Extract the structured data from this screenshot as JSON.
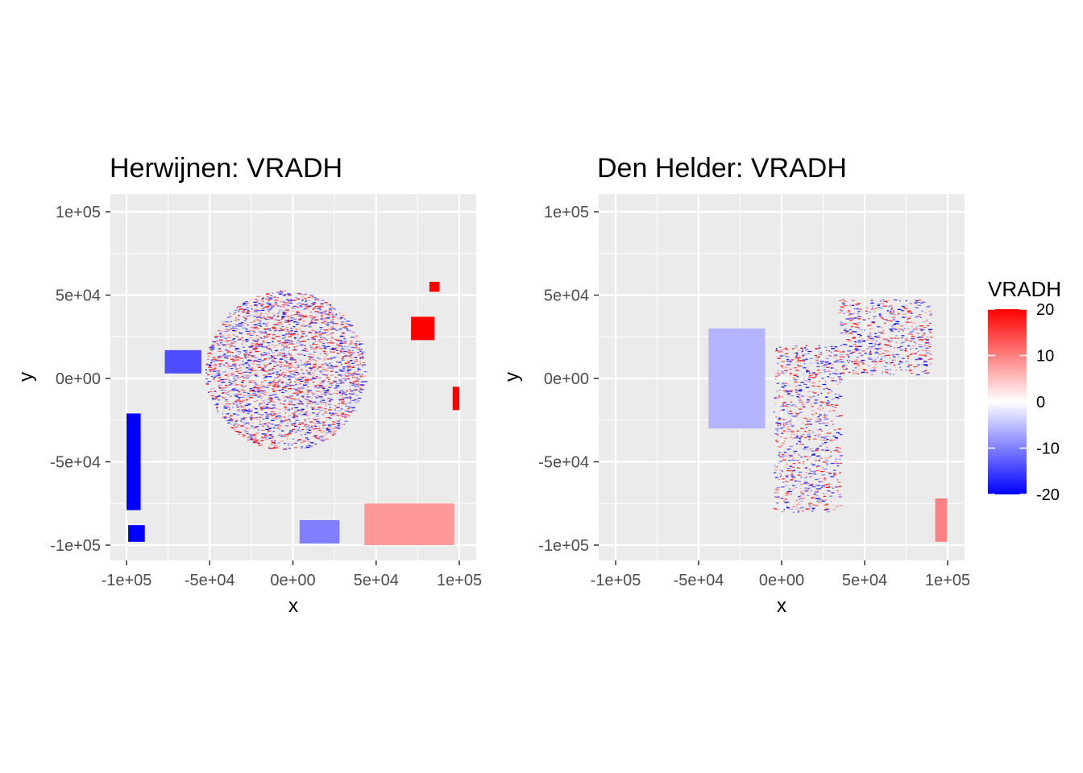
{
  "chart_data": [
    {
      "type": "heatmap",
      "title": "Herwijnen: VRADH",
      "xlabel": "x",
      "ylabel": "y",
      "xlim": [
        -100000,
        100000
      ],
      "ylim": [
        -100000,
        100000
      ],
      "x_ticks": [
        {
          "value": -100000,
          "label": "-1e+05"
        },
        {
          "value": -50000,
          "label": "-5e+04"
        },
        {
          "value": 0,
          "label": "0e+00"
        },
        {
          "value": 50000,
          "label": "5e+04"
        },
        {
          "value": 100000,
          "label": "1e+05"
        }
      ],
      "y_ticks": [
        {
          "value": 100000,
          "label": "1e+05"
        },
        {
          "value": 50000,
          "label": "5e+04"
        },
        {
          "value": 0,
          "label": "0e+00"
        },
        {
          "value": -50000,
          "label": "-5e+04"
        },
        {
          "value": -100000,
          "label": "-1e+05"
        }
      ],
      "grid": true,
      "regions": [
        {
          "desc": "noisy radial scan",
          "cx": -5000,
          "cy": 5000,
          "r": 48000,
          "value": 0,
          "noise": true
        },
        {
          "desc": "west block",
          "cx": -96000,
          "cy": -50000,
          "w": 9000,
          "h": 58000,
          "value": -20
        },
        {
          "desc": "southwest block",
          "cx": -94000,
          "cy": -93000,
          "w": 10000,
          "h": 10000,
          "value": -20
        },
        {
          "desc": "west patch",
          "cx": -66000,
          "cy": 10000,
          "w": 22000,
          "h": 14000,
          "value": -14
        },
        {
          "desc": "east patch",
          "cx": 78000,
          "cy": 30000,
          "w": 14000,
          "h": 14000,
          "value": 20
        },
        {
          "desc": "east upper patch",
          "cx": 85000,
          "cy": 55000,
          "w": 6000,
          "h": 6000,
          "value": 20
        },
        {
          "desc": "east edge",
          "cx": 98000,
          "cy": -12000,
          "w": 4000,
          "h": 14000,
          "value": 20
        },
        {
          "desc": "south blue patch",
          "cx": 16000,
          "cy": -92000,
          "w": 24000,
          "h": 14000,
          "value": -10
        },
        {
          "desc": "southeast patch",
          "cx": 70000,
          "cy": -88000,
          "w": 54000,
          "h": 26000,
          "value": 8
        }
      ]
    },
    {
      "type": "heatmap",
      "title": "Den Helder: VRADH",
      "xlabel": "x",
      "ylabel": "y",
      "xlim": [
        -100000,
        100000
      ],
      "ylim": [
        -100000,
        100000
      ],
      "x_ticks": [
        {
          "value": -100000,
          "label": "-1e+05"
        },
        {
          "value": -50000,
          "label": "-5e+04"
        },
        {
          "value": 0,
          "label": "0e+00"
        },
        {
          "value": 50000,
          "label": "5e+04"
        },
        {
          "value": 100000,
          "label": "1e+05"
        }
      ],
      "y_ticks": [
        {
          "value": 100000,
          "label": "1e+05"
        },
        {
          "value": 50000,
          "label": "5e+04"
        },
        {
          "value": 0,
          "label": "0e+00"
        },
        {
          "value": -50000,
          "label": "-5e+04"
        },
        {
          "value": -100000,
          "label": "-1e+05"
        }
      ],
      "grid": true,
      "regions": [
        {
          "desc": "west blob",
          "cx": -27000,
          "cy": 0,
          "w": 34000,
          "h": 60000,
          "value": -6
        },
        {
          "desc": "central noisy",
          "cx": 15000,
          "cy": -30000,
          "w": 40000,
          "h": 100000,
          "value": 0,
          "noise": true
        },
        {
          "desc": "northeast noisy",
          "cx": 62000,
          "cy": 25000,
          "w": 56000,
          "h": 45000,
          "value": 0,
          "noise": true
        },
        {
          "desc": "east edge",
          "cx": 96000,
          "cy": -85000,
          "w": 7000,
          "h": 26000,
          "value": 10
        }
      ]
    }
  ],
  "legend": {
    "title": "VRADH",
    "min": -20,
    "max": 20,
    "ticks": [
      20,
      10,
      0,
      -10,
      -20
    ],
    "tick_labels": [
      "20",
      "10",
      "0",
      "-10",
      "-20"
    ],
    "colors": {
      "low": "#0000ff",
      "mid": "#ffffff",
      "high": "#ff0000"
    }
  },
  "colors": {
    "panel_bg": "#ebebeb",
    "grid_major": "#ffffff",
    "text": "#000000",
    "tick_text": "#4d4d4d"
  }
}
